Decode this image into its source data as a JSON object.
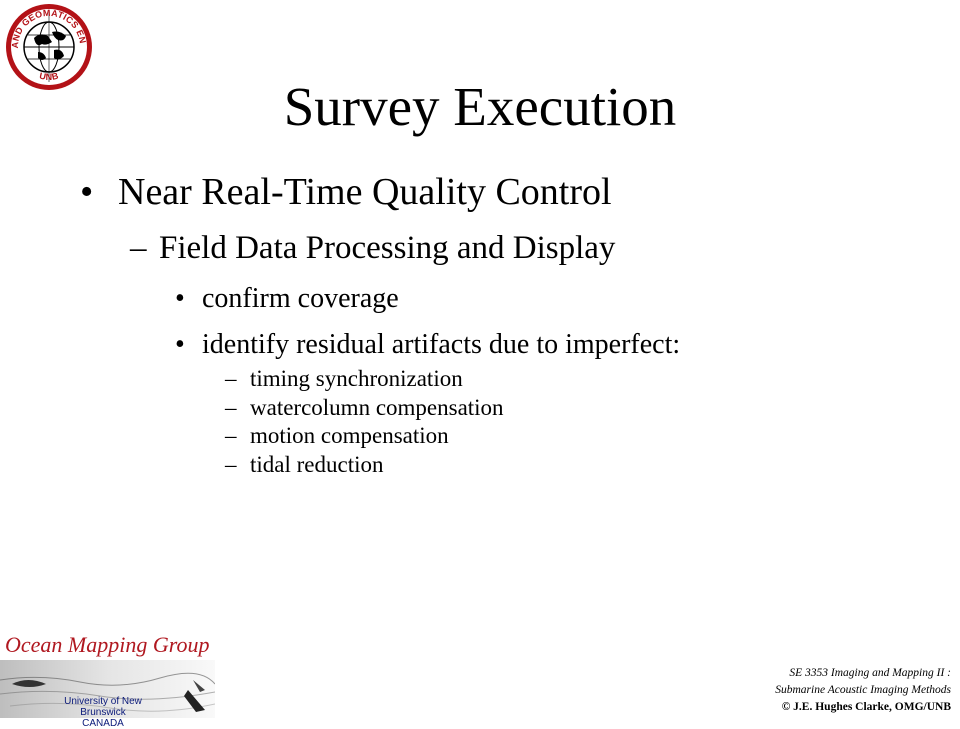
{
  "logo": {
    "seal_text_top": "GEODESY AND GEOMATICS ENGINEERING",
    "seal_text_bottom": "UNB",
    "icon": "globe-seal-icon"
  },
  "title": "Survey Execution",
  "bullets": {
    "level1": {
      "marker": "•",
      "text": "Near Real-Time Quality Control"
    },
    "level2": {
      "marker": "–",
      "text": "Field Data Processing and Display"
    },
    "level3": [
      {
        "marker": "•",
        "text": "confirm coverage"
      },
      {
        "marker": "•",
        "text": "identify residual artifacts due to imperfect:"
      }
    ],
    "level4": [
      {
        "marker": "–",
        "text": "timing synchronization"
      },
      {
        "marker": "–",
        "text": "watercolumn compensation"
      },
      {
        "marker": "–",
        "text": "motion compensation"
      },
      {
        "marker": "–",
        "text": "tidal reduction"
      }
    ]
  },
  "omg_logo": {
    "name": "Ocean Mapping Group",
    "university": "University of New Brunswick",
    "country": "CANADA",
    "color": "#b01820"
  },
  "footer": {
    "course": "SE 3353 Imaging and Mapping II :",
    "subtitle": "Submarine Acoustic Imaging Methods",
    "copyright": "© J.E. Hughes Clarke, OMG/UNB"
  }
}
